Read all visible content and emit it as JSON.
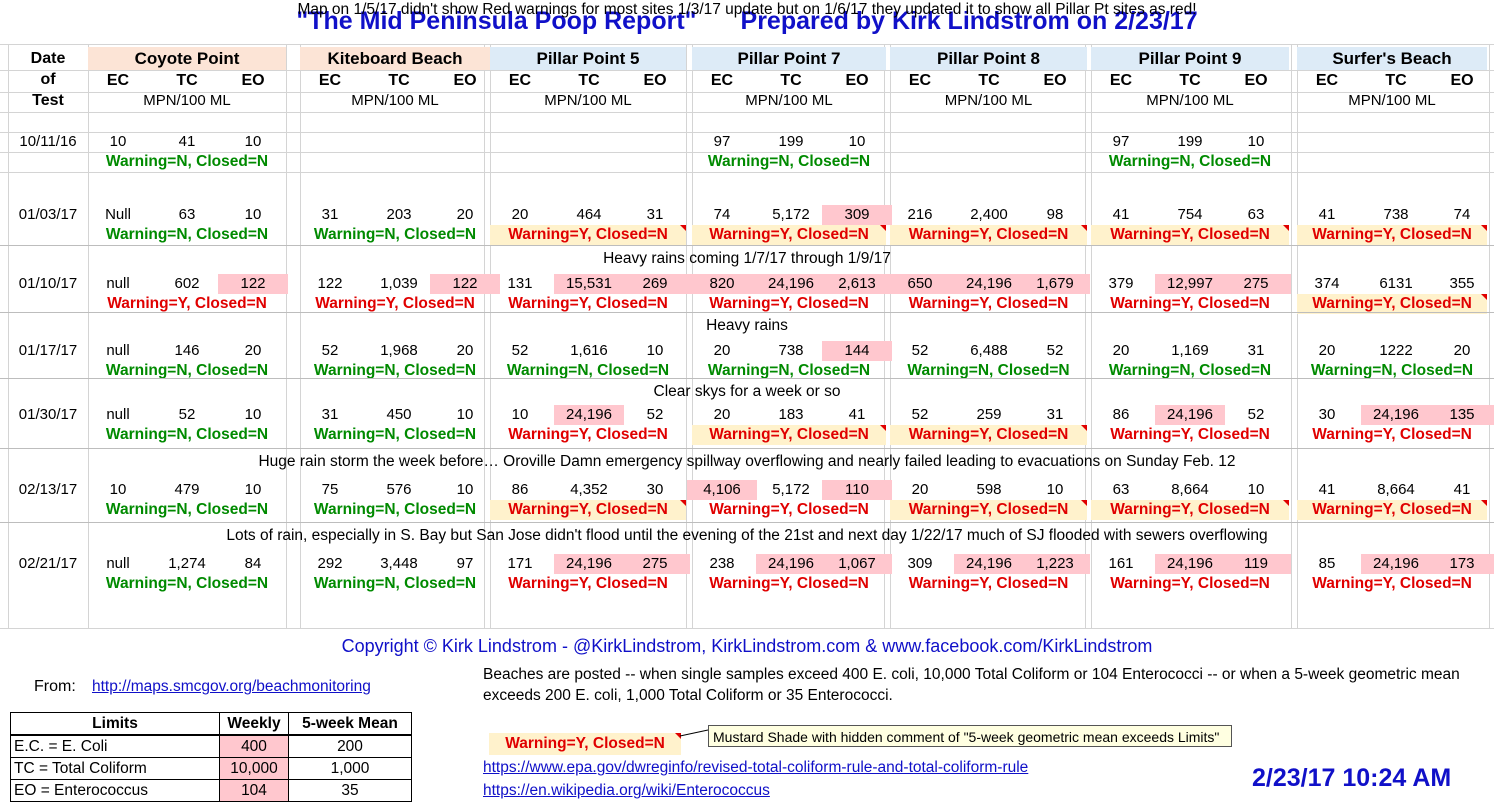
{
  "title": {
    "part1": "\"The Mid Peninsula Poop Report\"",
    "part2": "Prepared by Kirk Lindstrom on 2/23/17"
  },
  "date_header": [
    "Date",
    "of",
    "Test"
  ],
  "sub_cols": [
    "EC",
    "TC",
    "EO"
  ],
  "units": "MPN/100 ML",
  "sites": [
    {
      "name": "Coyote Point",
      "shade": "#fce4d6"
    },
    {
      "name": "Kiteboard Beach",
      "shade": "#fce4d6"
    },
    {
      "name": "Pillar Point 5",
      "shade": "#ddebf7"
    },
    {
      "name": "Pillar Point 7",
      "shade": "#ddebf7"
    },
    {
      "name": "Pillar Point 8",
      "shade": "#ddebf7"
    },
    {
      "name": "Pillar Point 9",
      "shade": "#ddebf7"
    },
    {
      "name": "Surfer's Beach",
      "shade": "#ddebf7"
    }
  ],
  "status_text": {
    "green": "Warning=N, Closed=N",
    "red": "Warning=Y,  Closed=N"
  },
  "colors": {
    "title_blue": "#1010c8",
    "exceed_pink": "#ffc7ce",
    "mustard": "#fff2cc",
    "warning_green": "#008a00",
    "warning_red": "#e00000"
  },
  "records": [
    {
      "date": "10/11/16",
      "note_before": "",
      "sites": [
        {
          "v": [
            "10",
            "41",
            "10"
          ],
          "pink": [],
          "status": "green",
          "mustard": false
        },
        {
          "v": [
            "",
            "",
            ""
          ],
          "pink": [],
          "status": "",
          "mustard": false
        },
        {
          "v": [
            "",
            "",
            ""
          ],
          "pink": [],
          "status": "",
          "mustard": false
        },
        {
          "v": [
            "97",
            "199",
            "10"
          ],
          "pink": [],
          "status": "green",
          "mustard": false
        },
        {
          "v": [
            "",
            "",
            ""
          ],
          "pink": [],
          "status": "",
          "mustard": false
        },
        {
          "v": [
            "97",
            "199",
            "10"
          ],
          "pink": [],
          "status": "green",
          "mustard": false
        },
        {
          "v": [
            "",
            "",
            ""
          ],
          "pink": [],
          "status": "",
          "mustard": false
        }
      ]
    },
    {
      "date": "01/03/17",
      "note_before": "Map on 1/5/17 didn't show Red warnings for most sites 1/3/17 update but on 1/6/17 they updated it to show all Pillar Pt sites as red!",
      "sites": [
        {
          "v": [
            "Null",
            "63",
            "10"
          ],
          "pink": [],
          "status": "green",
          "mustard": false
        },
        {
          "v": [
            "31",
            "203",
            "20"
          ],
          "pink": [],
          "status": "green",
          "mustard": false
        },
        {
          "v": [
            "20",
            "464",
            "31"
          ],
          "pink": [],
          "status": "red",
          "mustard": true
        },
        {
          "v": [
            "74",
            "5,172",
            "309"
          ],
          "pink": [
            2
          ],
          "status": "red",
          "mustard": true
        },
        {
          "v": [
            "216",
            "2,400",
            "98"
          ],
          "pink": [],
          "status": "red",
          "mustard": true
        },
        {
          "v": [
            "41",
            "754",
            "63"
          ],
          "pink": [],
          "status": "red",
          "mustard": true
        },
        {
          "v": [
            "41",
            "738",
            "74"
          ],
          "pink": [],
          "status": "red",
          "mustard": true
        }
      ]
    },
    {
      "date": "01/10/17",
      "note_before": "Heavy rains coming 1/7/17 through 1/9/17",
      "sites": [
        {
          "v": [
            "null",
            "602",
            "122"
          ],
          "pink": [
            2
          ],
          "status": "red",
          "mustard": false
        },
        {
          "v": [
            "122",
            "1,039",
            "122"
          ],
          "pink": [
            2
          ],
          "status": "red",
          "mustard": false
        },
        {
          "v": [
            "131",
            "15,531",
            "269"
          ],
          "pink": [
            1,
            2
          ],
          "status": "red",
          "mustard": false
        },
        {
          "v": [
            "820",
            "24,196",
            "2,613"
          ],
          "pink": [
            0,
            1,
            2
          ],
          "status": "red",
          "mustard": false
        },
        {
          "v": [
            "650",
            "24,196",
            "1,679"
          ],
          "pink": [
            0,
            1,
            2
          ],
          "status": "red",
          "mustard": false
        },
        {
          "v": [
            "379",
            "12,997",
            "275"
          ],
          "pink": [
            1,
            2
          ],
          "status": "red",
          "mustard": false
        },
        {
          "v": [
            "374",
            "6131",
            "355"
          ],
          "pink": [],
          "status": "red",
          "mustard": true
        }
      ]
    },
    {
      "date": "01/17/17",
      "note_before": "Heavy rains",
      "sites": [
        {
          "v": [
            "null",
            "146",
            "20"
          ],
          "pink": [],
          "status": "green",
          "mustard": false
        },
        {
          "v": [
            "52",
            "1,968",
            "20"
          ],
          "pink": [],
          "status": "green",
          "mustard": false
        },
        {
          "v": [
            "52",
            "1,616",
            "10"
          ],
          "pink": [],
          "status": "green",
          "mustard": false
        },
        {
          "v": [
            "20",
            "738",
            "144"
          ],
          "pink": [
            2
          ],
          "status": "green",
          "mustard": false
        },
        {
          "v": [
            "52",
            "6,488",
            "52"
          ],
          "pink": [],
          "status": "green",
          "mustard": false
        },
        {
          "v": [
            "20",
            "1,169",
            "31"
          ],
          "pink": [],
          "status": "green",
          "mustard": false
        },
        {
          "v": [
            "20",
            "1222",
            "20"
          ],
          "pink": [],
          "status": "green",
          "mustard": false
        }
      ]
    },
    {
      "date": "01/30/17",
      "note_before": "Clear skys for a week or so",
      "sites": [
        {
          "v": [
            "null",
            "52",
            "10"
          ],
          "pink": [],
          "status": "green",
          "mustard": false
        },
        {
          "v": [
            "31",
            "450",
            "10"
          ],
          "pink": [],
          "status": "green",
          "mustard": false
        },
        {
          "v": [
            "10",
            "24,196",
            "52"
          ],
          "pink": [
            1
          ],
          "status": "red",
          "mustard": false
        },
        {
          "v": [
            "20",
            "183",
            "41"
          ],
          "pink": [],
          "status": "red",
          "mustard": true
        },
        {
          "v": [
            "52",
            "259",
            "31"
          ],
          "pink": [],
          "status": "red",
          "mustard": true
        },
        {
          "v": [
            "86",
            "24,196",
            "52"
          ],
          "pink": [
            1
          ],
          "status": "red",
          "mustard": false
        },
        {
          "v": [
            "30",
            "24,196",
            "135"
          ],
          "pink": [
            1,
            2
          ],
          "status": "red",
          "mustard": false
        }
      ]
    },
    {
      "date": "02/13/17",
      "note_before": "Huge rain storm the week before… Oroville Damn emergency spillway overflowing and nearly failed leading to evacuations on Sunday Feb. 12",
      "sites": [
        {
          "v": [
            "10",
            "479",
            "10"
          ],
          "pink": [],
          "status": "green",
          "mustard": false
        },
        {
          "v": [
            "75",
            "576",
            "10"
          ],
          "pink": [],
          "status": "green",
          "mustard": false
        },
        {
          "v": [
            "86",
            "4,352",
            "30"
          ],
          "pink": [],
          "status": "red",
          "mustard": true
        },
        {
          "v": [
            "4,106",
            "5,172",
            "110"
          ],
          "pink": [
            0,
            2
          ],
          "status": "red",
          "mustard": false
        },
        {
          "v": [
            "20",
            "598",
            "10"
          ],
          "pink": [],
          "status": "red",
          "mustard": true
        },
        {
          "v": [
            "63",
            "8,664",
            "10"
          ],
          "pink": [],
          "status": "red",
          "mustard": true
        },
        {
          "v": [
            "41",
            "8,664",
            "41"
          ],
          "pink": [],
          "status": "red",
          "mustard": true
        }
      ]
    },
    {
      "date": "02/21/17",
      "note_before": "Lots of rain, especially in S. Bay but San Jose didn't flood until the evening of the 21st and next day 1/22/17 much of SJ flooded with sewers overflowing",
      "sites": [
        {
          "v": [
            "null",
            "1,274",
            "84"
          ],
          "pink": [],
          "status": "green",
          "mustard": false
        },
        {
          "v": [
            "292",
            "3,448",
            "97"
          ],
          "pink": [],
          "status": "green",
          "mustard": false
        },
        {
          "v": [
            "171",
            "24,196",
            "275"
          ],
          "pink": [
            1,
            2
          ],
          "status": "red",
          "mustard": false
        },
        {
          "v": [
            "238",
            "24,196",
            "1,067"
          ],
          "pink": [
            1,
            2
          ],
          "status": "red",
          "mustard": false
        },
        {
          "v": [
            "309",
            "24,196",
            "1,223"
          ],
          "pink": [
            1,
            2
          ],
          "status": "red",
          "mustard": false
        },
        {
          "v": [
            "161",
            "24,196",
            "119"
          ],
          "pink": [
            1,
            2
          ],
          "status": "red",
          "mustard": false
        },
        {
          "v": [
            "85",
            "24,196",
            "173"
          ],
          "pink": [
            1,
            2
          ],
          "status": "red",
          "mustard": false
        }
      ]
    }
  ],
  "copyright": "Copyright © Kirk Lindstrom   -   @KirkLindstrom, KirkLindstrom.com & www.facebook.com/KirkLindstrom",
  "from_label": "From:",
  "from_link": "http://maps.smcgov.org/beachmonitoring",
  "posting_rule": "Beaches are posted -- when single samples exceed 400 E. coli, 10,000 Total Coliform or 104 Enterococci -- or when a 5-week geometric mean exceeds 200 E. coli, 1,000 Total Coliform or 35 Enterococci.",
  "limits": {
    "headers": [
      "Limits",
      "Weekly",
      "5-week Mean"
    ],
    "rows": [
      [
        "E.C. = E. Coli",
        "400",
        "200"
      ],
      [
        "TC = Total Coliform",
        "10,000",
        "1,000"
      ],
      [
        "EO = Enterococcus",
        "104",
        "35"
      ]
    ]
  },
  "legend_sample": "Warning=Y,  Closed=N",
  "legend_comment": "Mustard Shade with hidden comment of \"5-week geometric mean exceeds Limits\"",
  "links": [
    "https://www.epa.gov/dwreginfo/revised-total-coliform-rule-and-total-coliform-rule",
    "https://en.wikipedia.org/wiki/Enterococcus"
  ],
  "timestamp": "2/23/17 10:24 AM"
}
